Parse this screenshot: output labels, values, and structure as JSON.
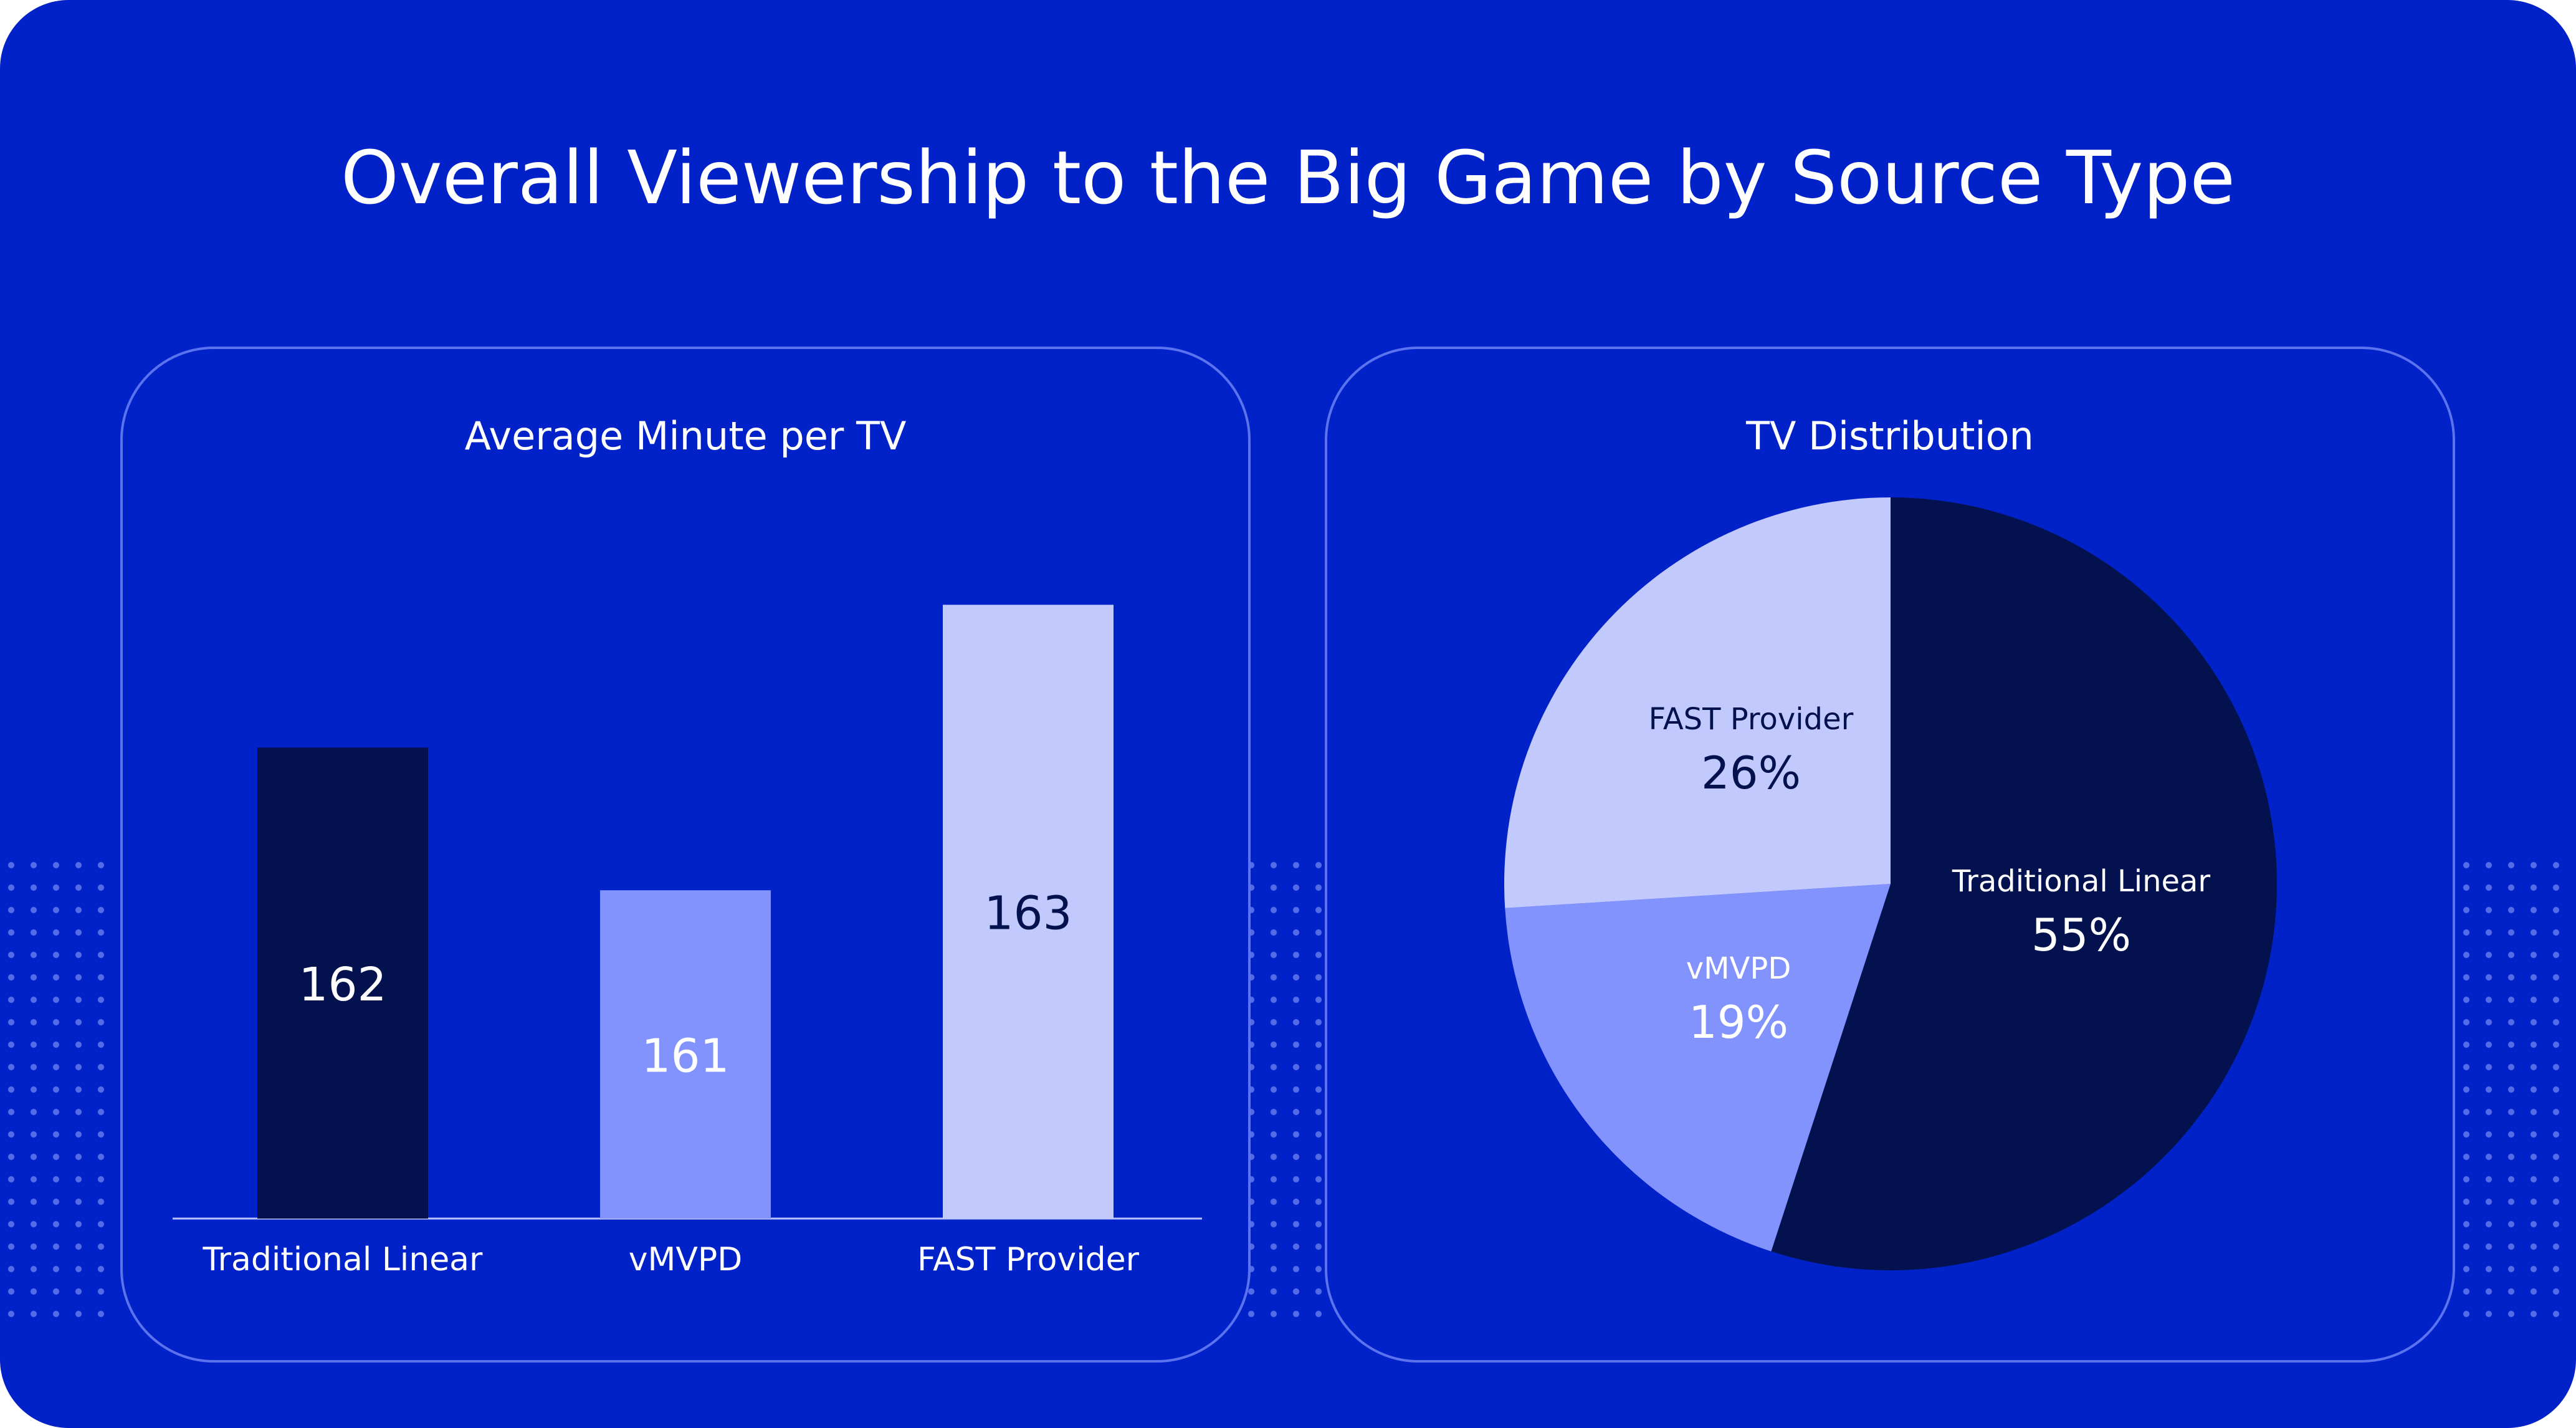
{
  "title": "Overall Viewership to the Big Game by Source Type",
  "colors": {
    "background": "#0222c9",
    "panel_border": "#5b73ee",
    "traditional_linear": "#03124f",
    "vmvpd": "#8293fe",
    "fast_provider": "#c2c9fc",
    "text_light": "#ffffff",
    "text_dark": "#03124f"
  },
  "chart_data": [
    {
      "type": "bar",
      "title": "Average Minute per TV",
      "categories": [
        "Traditional Linear",
        "vMVPD",
        "FAST Provider"
      ],
      "values": [
        162,
        161,
        163
      ],
      "value_labels": [
        "162",
        "161",
        "163"
      ],
      "colors": [
        "#03124f",
        "#8293fe",
        "#c2c9fc"
      ],
      "label_colors": [
        "#ffffff",
        "#ffffff",
        "#03124f"
      ],
      "xlabel": "",
      "ylabel": "",
      "grid": false,
      "legend": "none"
    },
    {
      "type": "pie",
      "title": "TV Distribution",
      "labels": [
        "Traditional Linear",
        "vMVPD",
        "FAST Provider"
      ],
      "values": [
        55,
        19,
        26
      ],
      "value_labels": [
        "55%",
        "19%",
        "26%"
      ],
      "colors": [
        "#03124f",
        "#8293fe",
        "#c2c9fc"
      ],
      "label_colors": [
        "#ffffff",
        "#ffffff",
        "#03124f"
      ],
      "legend": "none"
    }
  ]
}
